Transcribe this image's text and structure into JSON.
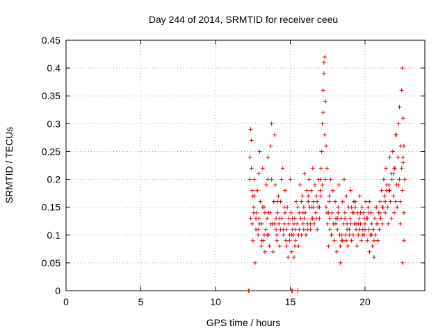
{
  "chart_data": {
    "type": "scatter",
    "title": "Day 244 of 2014, SRMTID for receiver ceeu",
    "xlabel": "GPS time / hours",
    "ylabel": "SRMTID / TECUs",
    "xlim": [
      0,
      24
    ],
    "ylim": [
      0,
      0.45
    ],
    "xticks": [
      0,
      5,
      10,
      15,
      20
    ],
    "xtick_labels": [
      "0",
      "5",
      "10",
      "15",
      "20"
    ],
    "yticks": [
      0,
      0.05,
      0.1,
      0.15,
      0.2,
      0.25,
      0.3,
      0.35,
      0.4,
      0.45
    ],
    "ytick_labels": [
      "0",
      "0.05",
      "0.1",
      "0.15",
      "0.2",
      "0.25",
      "0.3",
      "0.35",
      "0.4",
      "0.45"
    ],
    "grid": true,
    "marker": "plus",
    "color": "#e00000",
    "series": [
      {
        "name": "SRMTID",
        "x": [
          12.2,
          12.25,
          15.1,
          15.15,
          15.5,
          12.3,
          12.35,
          12.4,
          12.45,
          12.5,
          12.55,
          12.6,
          12.65,
          12.7,
          12.75,
          12.8,
          12.85,
          12.9,
          12.95,
          13.0,
          13.05,
          13.1,
          13.15,
          13.2,
          13.25,
          13.3,
          13.35,
          13.4,
          13.45,
          13.5,
          13.55,
          13.6,
          13.65,
          13.7,
          13.75,
          13.8,
          13.85,
          13.9,
          13.95,
          14.0,
          14.05,
          14.1,
          14.15,
          14.2,
          14.25,
          14.3,
          14.35,
          14.4,
          14.45,
          14.5,
          14.55,
          14.6,
          14.65,
          14.7,
          14.75,
          14.8,
          14.85,
          14.9,
          14.95,
          15.0,
          15.05,
          15.1,
          15.15,
          15.2,
          15.25,
          15.3,
          15.35,
          15.4,
          15.45,
          15.5,
          15.55,
          15.6,
          15.65,
          15.7,
          15.75,
          15.8,
          15.85,
          15.9,
          15.95,
          16.0,
          16.05,
          16.1,
          16.15,
          16.2,
          16.25,
          16.3,
          16.35,
          16.4,
          16.45,
          16.5,
          16.55,
          16.6,
          16.65,
          16.7,
          16.75,
          16.8,
          16.85,
          16.9,
          16.95,
          17.0,
          17.05,
          17.1,
          17.15,
          17.2,
          17.25,
          17.3,
          17.35,
          17.4,
          17.45,
          17.5,
          17.55,
          17.6,
          17.65,
          17.7,
          17.75,
          17.8,
          17.85,
          17.9,
          17.95,
          18.0,
          18.05,
          18.1,
          18.15,
          18.2,
          18.25,
          18.3,
          18.35,
          18.4,
          18.45,
          18.5,
          18.55,
          18.6,
          18.65,
          18.7,
          18.75,
          18.8,
          18.85,
          18.9,
          18.95,
          19.0,
          19.05,
          19.1,
          19.15,
          19.2,
          19.25,
          19.3,
          19.35,
          19.4,
          19.45,
          19.5,
          19.55,
          19.6,
          19.65,
          19.7,
          19.75,
          19.8,
          19.85,
          19.9,
          19.95,
          20.0,
          20.05,
          20.1,
          20.15,
          20.2,
          20.25,
          20.3,
          20.35,
          20.4,
          20.45,
          20.5,
          20.55,
          20.6,
          20.65,
          20.7,
          20.75,
          20.8,
          20.85,
          20.9,
          20.95,
          21.0,
          21.05,
          21.1,
          21.15,
          21.2,
          21.25,
          21.3,
          21.35,
          21.4,
          21.45,
          21.5,
          21.55,
          21.6,
          21.65,
          21.7,
          21.75,
          21.8,
          21.85,
          21.9,
          21.95,
          22.0,
          22.05,
          22.1,
          22.15,
          22.2,
          22.25,
          22.3,
          22.35,
          22.4,
          22.45,
          22.5,
          22.55,
          22.6,
          22.65,
          12.3,
          12.4,
          12.5,
          12.7,
          12.9,
          13.1,
          13.3,
          13.5,
          13.7,
          13.9,
          14.1,
          14.3,
          14.6,
          14.9,
          15.1,
          15.3,
          15.6,
          15.9,
          16.2,
          16.5,
          16.8,
          17.0,
          17.2,
          17.25,
          17.3,
          17.35,
          17.4,
          17.6,
          17.9,
          18.2,
          18.5,
          18.8,
          19.1,
          19.4,
          19.7,
          20.0,
          20.3,
          20.6,
          20.8,
          21.0,
          21.3,
          21.6,
          21.9,
          22.1,
          22.3,
          22.45,
          22.5,
          22.55,
          22.6,
          12.35,
          12.6,
          12.85,
          13.15,
          13.45,
          13.75,
          14.05,
          14.35,
          14.65,
          14.95,
          15.25,
          15.55,
          15.85,
          16.15,
          16.45,
          16.75,
          17.05,
          17.45,
          17.75,
          18.05,
          18.35,
          18.65,
          18.95,
          19.25,
          19.55,
          19.85,
          20.15,
          20.45,
          20.75,
          21.05,
          21.35,
          21.65,
          21.95,
          22.25,
          22.55,
          12.45,
          12.95,
          13.55,
          14.15,
          14.75,
          15.35,
          15.95,
          16.55,
          17.15,
          17.65,
          18.15,
          18.75,
          19.35,
          19.95,
          20.55,
          21.15,
          21.75,
          22.35,
          22.6,
          12.55,
          13.25,
          13.95,
          14.55,
          15.15,
          15.75,
          16.35,
          16.95,
          17.55,
          18.45,
          19.05,
          19.65,
          20.25,
          20.85,
          21.45,
          22.05,
          22.5
        ],
        "y": [
          0.0,
          0.0,
          0.0,
          0.0,
          0.0,
          0.24,
          0.29,
          0.22,
          0.12,
          0.09,
          0.15,
          0.2,
          0.05,
          0.11,
          0.14,
          0.18,
          0.1,
          0.13,
          0.25,
          0.16,
          0.08,
          0.12,
          0.22,
          0.09,
          0.15,
          0.07,
          0.11,
          0.19,
          0.13,
          0.24,
          0.1,
          0.08,
          0.14,
          0.26,
          0.3,
          0.12,
          0.07,
          0.16,
          0.28,
          0.19,
          0.11,
          0.09,
          0.14,
          0.17,
          0.12,
          0.08,
          0.16,
          0.2,
          0.13,
          0.22,
          0.1,
          0.12,
          0.18,
          0.09,
          0.11,
          0.15,
          0.06,
          0.13,
          0.1,
          0.2,
          0.14,
          0.07,
          0.11,
          0.1,
          0.06,
          0.13,
          0.09,
          0.16,
          0.12,
          0.15,
          0.08,
          0.11,
          0.19,
          0.13,
          0.1,
          0.17,
          0.12,
          0.15,
          0.21,
          0.14,
          0.1,
          0.18,
          0.12,
          0.16,
          0.2,
          0.15,
          0.11,
          0.18,
          0.13,
          0.22,
          0.16,
          0.12,
          0.19,
          0.14,
          0.17,
          0.11,
          0.15,
          0.2,
          0.13,
          0.18,
          0.22,
          0.25,
          0.3,
          0.36,
          0.41,
          0.28,
          0.2,
          0.15,
          0.22,
          0.12,
          0.08,
          0.16,
          0.13,
          0.2,
          0.1,
          0.14,
          0.18,
          0.12,
          0.09,
          0.16,
          0.13,
          0.07,
          0.11,
          0.15,
          0.19,
          0.1,
          0.05,
          0.13,
          0.09,
          0.16,
          0.12,
          0.2,
          0.14,
          0.1,
          0.17,
          0.12,
          0.08,
          0.15,
          0.11,
          0.13,
          0.18,
          0.09,
          0.14,
          0.1,
          0.16,
          0.12,
          0.15,
          0.11,
          0.08,
          0.14,
          0.1,
          0.13,
          0.17,
          0.12,
          0.09,
          0.15,
          0.11,
          0.14,
          0.1,
          0.12,
          0.16,
          0.13,
          0.09,
          0.15,
          0.11,
          0.07,
          0.1,
          0.14,
          0.12,
          0.08,
          0.11,
          0.06,
          0.13,
          0.1,
          0.15,
          0.12,
          0.09,
          0.14,
          0.11,
          0.16,
          0.13,
          0.18,
          0.12,
          0.15,
          0.2,
          0.17,
          0.14,
          0.22,
          0.19,
          0.15,
          0.12,
          0.18,
          0.24,
          0.16,
          0.13,
          0.2,
          0.25,
          0.17,
          0.14,
          0.22,
          0.28,
          0.19,
          0.15,
          0.24,
          0.3,
          0.2,
          0.16,
          0.26,
          0.22,
          0.18,
          0.24,
          0.14,
          0.2,
          0.2,
          0.27,
          0.17,
          0.13,
          0.21,
          0.09,
          0.14,
          0.2,
          0.12,
          0.16,
          0.1,
          0.13,
          0.15,
          0.12,
          0.1,
          0.08,
          0.14,
          0.11,
          0.17,
          0.13,
          0.16,
          0.2,
          0.32,
          0.39,
          0.42,
          0.34,
          0.26,
          0.17,
          0.12,
          0.14,
          0.09,
          0.11,
          0.15,
          0.12,
          0.14,
          0.11,
          0.16,
          0.09,
          0.12,
          0.14,
          0.17,
          0.19,
          0.21,
          0.28,
          0.33,
          0.36,
          0.4,
          0.31,
          0.26,
          0.13,
          0.17,
          0.11,
          0.15,
          0.1,
          0.2,
          0.13,
          0.11,
          0.14,
          0.09,
          0.12,
          0.1,
          0.14,
          0.11,
          0.15,
          0.13,
          0.17,
          0.14,
          0.1,
          0.12,
          0.08,
          0.13,
          0.1,
          0.14,
          0.12,
          0.1,
          0.13,
          0.1,
          0.15,
          0.13,
          0.16,
          0.18,
          0.22,
          0.19,
          0.23,
          0.18,
          0.12,
          0.14,
          0.16,
          0.08,
          0.11,
          0.13,
          0.15,
          0.19,
          0.11,
          0.13,
          0.09,
          0.16,
          0.13,
          0.11,
          0.15,
          0.21,
          0.12,
          0.09,
          0.14,
          0.1,
          0.12,
          0.11,
          0.13,
          0.16,
          0.12,
          0.15,
          0.14,
          0.1,
          0.12,
          0.11,
          0.14,
          0.09,
          0.18,
          0.16,
          0.05
        ]
      }
    ]
  }
}
